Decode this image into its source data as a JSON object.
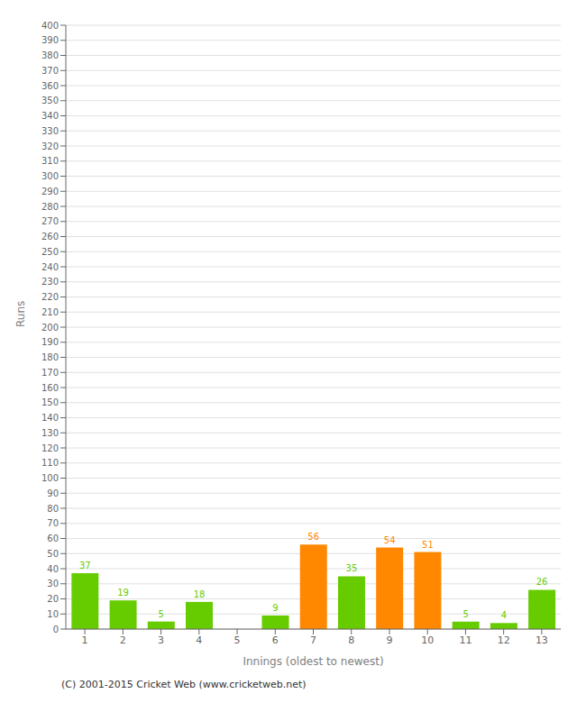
{
  "chart_data": {
    "type": "bar",
    "categories": [
      "1",
      "2",
      "3",
      "4",
      "5",
      "6",
      "7",
      "8",
      "9",
      "10",
      "11",
      "12",
      "13"
    ],
    "values": [
      37,
      19,
      5,
      18,
      0,
      9,
      56,
      35,
      54,
      51,
      5,
      4,
      26
    ],
    "colors": [
      "#66cc00",
      "#66cc00",
      "#66cc00",
      "#66cc00",
      "#66cc00",
      "#66cc00",
      "#ff8800",
      "#66cc00",
      "#ff8800",
      "#ff8800",
      "#66cc00",
      "#66cc00",
      "#66cc00"
    ],
    "xlabel": "Innings (oldest to newest)",
    "ylabel": "Runs",
    "ylim": [
      0,
      400
    ],
    "yticks": [
      0,
      10,
      20,
      30,
      40,
      50,
      60,
      70,
      80,
      90,
      100,
      110,
      120,
      130,
      140,
      150,
      160,
      170,
      180,
      190,
      200,
      210,
      220,
      230,
      240,
      250,
      260,
      270,
      280,
      290,
      300,
      310,
      320,
      330,
      340,
      350,
      360,
      370,
      380,
      390,
      400
    ],
    "grid": true,
    "data_labels": true,
    "annotations": [
      "(C) 2001-2015 Cricket Web (www.cricketweb.net)"
    ]
  }
}
